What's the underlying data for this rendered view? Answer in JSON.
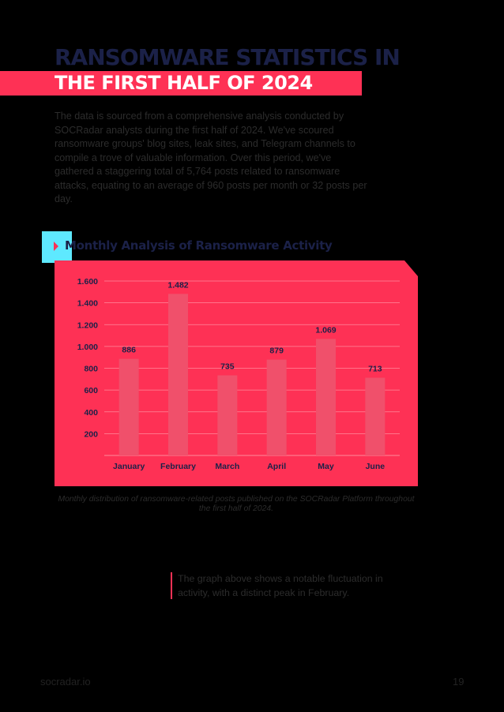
{
  "header": {
    "title_line1": "RANSOMWARE STATISTICS IN",
    "title_line2": "THE FIRST HALF OF 2024"
  },
  "intro": "The data is sourced from a comprehensive analysis conducted by SOCRadar analysts during the first half of 2024. We've scoured ransomware groups' blog sites, leak sites, and Telegram channels to compile a trove of valuable information. Over this period, we've gathered a staggering total of 5,764 posts related to ransomware attacks, equating to an average of 960 posts per month or 32 posts per day.",
  "section": {
    "title": "Monthly Analysis of Ransomware Activity"
  },
  "chart_data": {
    "type": "bar",
    "categories": [
      "January",
      "February",
      "March",
      "April",
      "May",
      "June"
    ],
    "values": [
      886,
      1482,
      735,
      879,
      1069,
      713
    ],
    "value_labels": [
      "886",
      "1.482",
      "735",
      "879",
      "1.069",
      "713"
    ],
    "yticks": [
      "200",
      "400",
      "600",
      "800",
      "1.000",
      "1.200",
      "1.400",
      "1.600"
    ],
    "ylim": [
      0,
      1600
    ],
    "grid": true,
    "title": "",
    "xlabel": "",
    "ylabel": "",
    "colors": {
      "card": "#fe3155",
      "bar": "#f0506b",
      "axis_text": "#1b2148",
      "grid": "#ff8a9c"
    }
  },
  "caption": "Monthly distribution of ransomware-related posts published on the SOCRadar Platform throughout the first half of 2024.",
  "note": "The graph above shows a notable fluctuation in activity, with a distinct peak in February.",
  "footer": {
    "site": "socradar.io",
    "page": "19"
  },
  "colors": {
    "accent": "#fe3155",
    "navy": "#1b2148",
    "cyan": "#5ee9ff",
    "background": "#000000"
  }
}
